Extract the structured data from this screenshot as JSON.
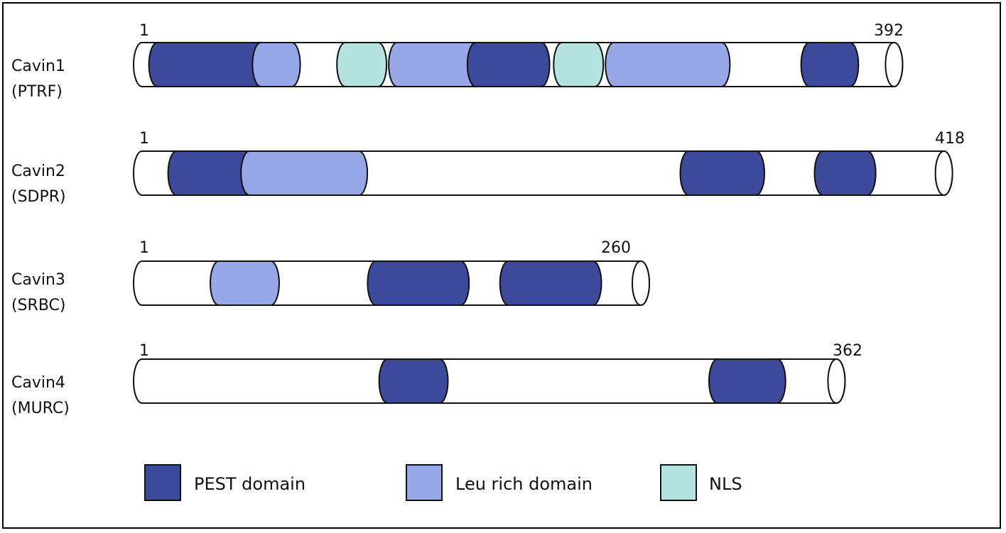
{
  "colors": {
    "pest": "#3d4a9c",
    "leu": "#97a8e8",
    "nls": "#b5e3e0",
    "outline": "#111111",
    "body": "#ffffff"
  },
  "proteins": [
    {
      "name": "Cavin1",
      "alias": "(PTRF)",
      "start_label": "1",
      "end_label": "392",
      "length": 392,
      "domains": [
        {
          "type": "pest",
          "start": 8,
          "end": 60
        },
        {
          "type": "leu",
          "start": 62,
          "end": 78
        },
        {
          "type": "nls",
          "start": 106,
          "end": 123
        },
        {
          "type": "leu",
          "start": 133,
          "end": 172
        },
        {
          "type": "pest",
          "start": 174,
          "end": 208
        },
        {
          "type": "nls",
          "start": 219,
          "end": 236
        },
        {
          "type": "leu",
          "start": 246,
          "end": 302
        },
        {
          "type": "pest",
          "start": 348,
          "end": 369
        }
      ]
    },
    {
      "name": "Cavin2",
      "alias": "(SDPR)",
      "start_label": "1",
      "end_label": "418",
      "length": 418,
      "domains": [
        {
          "type": "pest",
          "start": 18,
          "end": 55
        },
        {
          "type": "leu",
          "start": 56,
          "end": 113
        },
        {
          "type": "pest",
          "start": 285,
          "end": 320
        },
        {
          "type": "pest",
          "start": 355,
          "end": 378
        }
      ]
    },
    {
      "name": "Cavin3",
      "alias": "(SRBC)",
      "start_label": "1",
      "end_label": "260",
      "length": 260,
      "domains": [
        {
          "type": "leu",
          "start": 40,
          "end": 67
        },
        {
          "type": "pest",
          "start": 122,
          "end": 166
        },
        {
          "type": "pest",
          "start": 191,
          "end": 235
        }
      ]
    },
    {
      "name": "Cavin4",
      "alias": "(MURC)",
      "start_label": "1",
      "end_label": "362",
      "length": 362,
      "domains": [
        {
          "type": "pest",
          "start": 128,
          "end": 155
        },
        {
          "type": "pest",
          "start": 300,
          "end": 331
        }
      ]
    }
  ],
  "legend": [
    {
      "type": "pest",
      "label": "PEST domain"
    },
    {
      "type": "leu",
      "label": "Leu rich domain"
    },
    {
      "type": "nls",
      "label": "NLS"
    }
  ]
}
